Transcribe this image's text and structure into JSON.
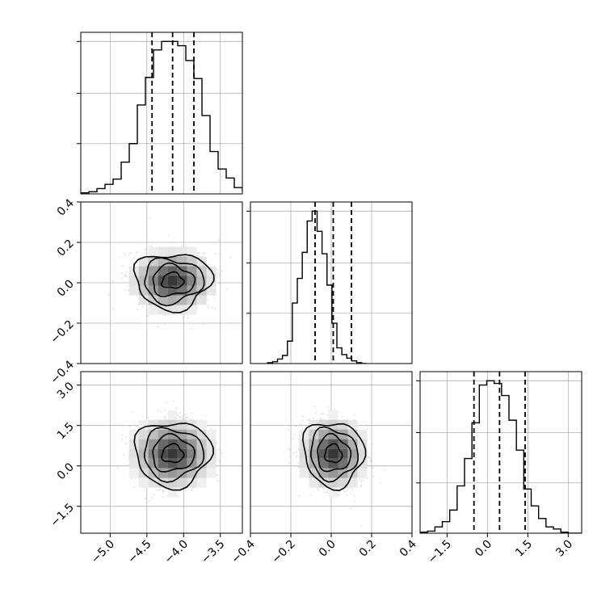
{
  "chart_data": {
    "type": "corner",
    "params": [
      {
        "xlim": [
          -5.4,
          -3.2
        ],
        "ticks": [
          -5.0,
          -4.5,
          -4.0,
          -3.5
        ],
        "tick_labels": [
          "−5.0",
          "−4.5",
          "−4.0",
          "−3.5"
        ],
        "quantiles": [
          -4.43,
          -4.15,
          -3.86
        ],
        "hist_edges_start": -5.4,
        "hist_bin_width": 0.11,
        "hist_counts": [
          2,
          4,
          10,
          18,
          28,
          60,
          95,
          168,
          220,
          272,
          288,
          288,
          280,
          252,
          218,
          148,
          80,
          47,
          30,
          12,
          6,
          2,
          0
        ]
      },
      {
        "xlim": [
          -0.4,
          0.4
        ],
        "ticks": [
          -0.4,
          -0.2,
          0.0,
          0.2,
          0.4
        ],
        "tick_labels": [
          "−0.4",
          "−0.2",
          "0.0",
          "0.2",
          "0.4"
        ],
        "quantiles": [
          -0.08,
          0.01,
          0.1
        ],
        "hist_edges_start": -0.315,
        "hist_bin_width": 0.0245,
        "hist_counts": [
          2,
          4,
          10,
          18,
          50,
          135,
          190,
          248,
          318,
          340,
          295,
          245,
          175,
          90,
          35,
          20,
          12,
          6,
          2,
          0
        ]
      },
      {
        "xlim": [
          -2.5,
          3.5
        ],
        "ticks": [
          -1.5,
          0.0,
          1.5,
          3.0
        ],
        "tick_labels": [
          "−1.5",
          "0.0",
          "1.5",
          "3.0"
        ],
        "quantiles": [
          -0.5,
          0.45,
          1.4
        ],
        "hist_edges_start": -2.5,
        "hist_bin_width": 0.275,
        "hist_counts": [
          2,
          4,
          12,
          22,
          44,
          90,
          142,
          210,
          282,
          290,
          285,
          262,
          215,
          158,
          84,
          52,
          28,
          12,
          8,
          2,
          0,
          0
        ]
      }
    ],
    "pairs": [
      {
        "x_param": 0,
        "y_param": 1,
        "center": [
          -4.15,
          0.01
        ],
        "spread": [
          0.45,
          0.12
        ],
        "orientation": 0,
        "jitter": 0.12
      },
      {
        "x_param": 0,
        "y_param": 2,
        "center": [
          -4.15,
          0.45
        ],
        "spread": [
          0.45,
          1.05
        ],
        "orientation": 0,
        "jitter": 0.1
      },
      {
        "x_param": 1,
        "y_param": 2,
        "center": [
          0.01,
          0.45
        ],
        "spread": [
          0.13,
          1.05
        ],
        "orientation": 0.2,
        "jitter": 0.1
      }
    ],
    "contour_levels": [
      "0.5 sigma",
      "1 sigma",
      "1.5 sigma",
      "2 sigma"
    ],
    "grid": true,
    "color": "#000000",
    "point_color": "#bbbbbb"
  }
}
